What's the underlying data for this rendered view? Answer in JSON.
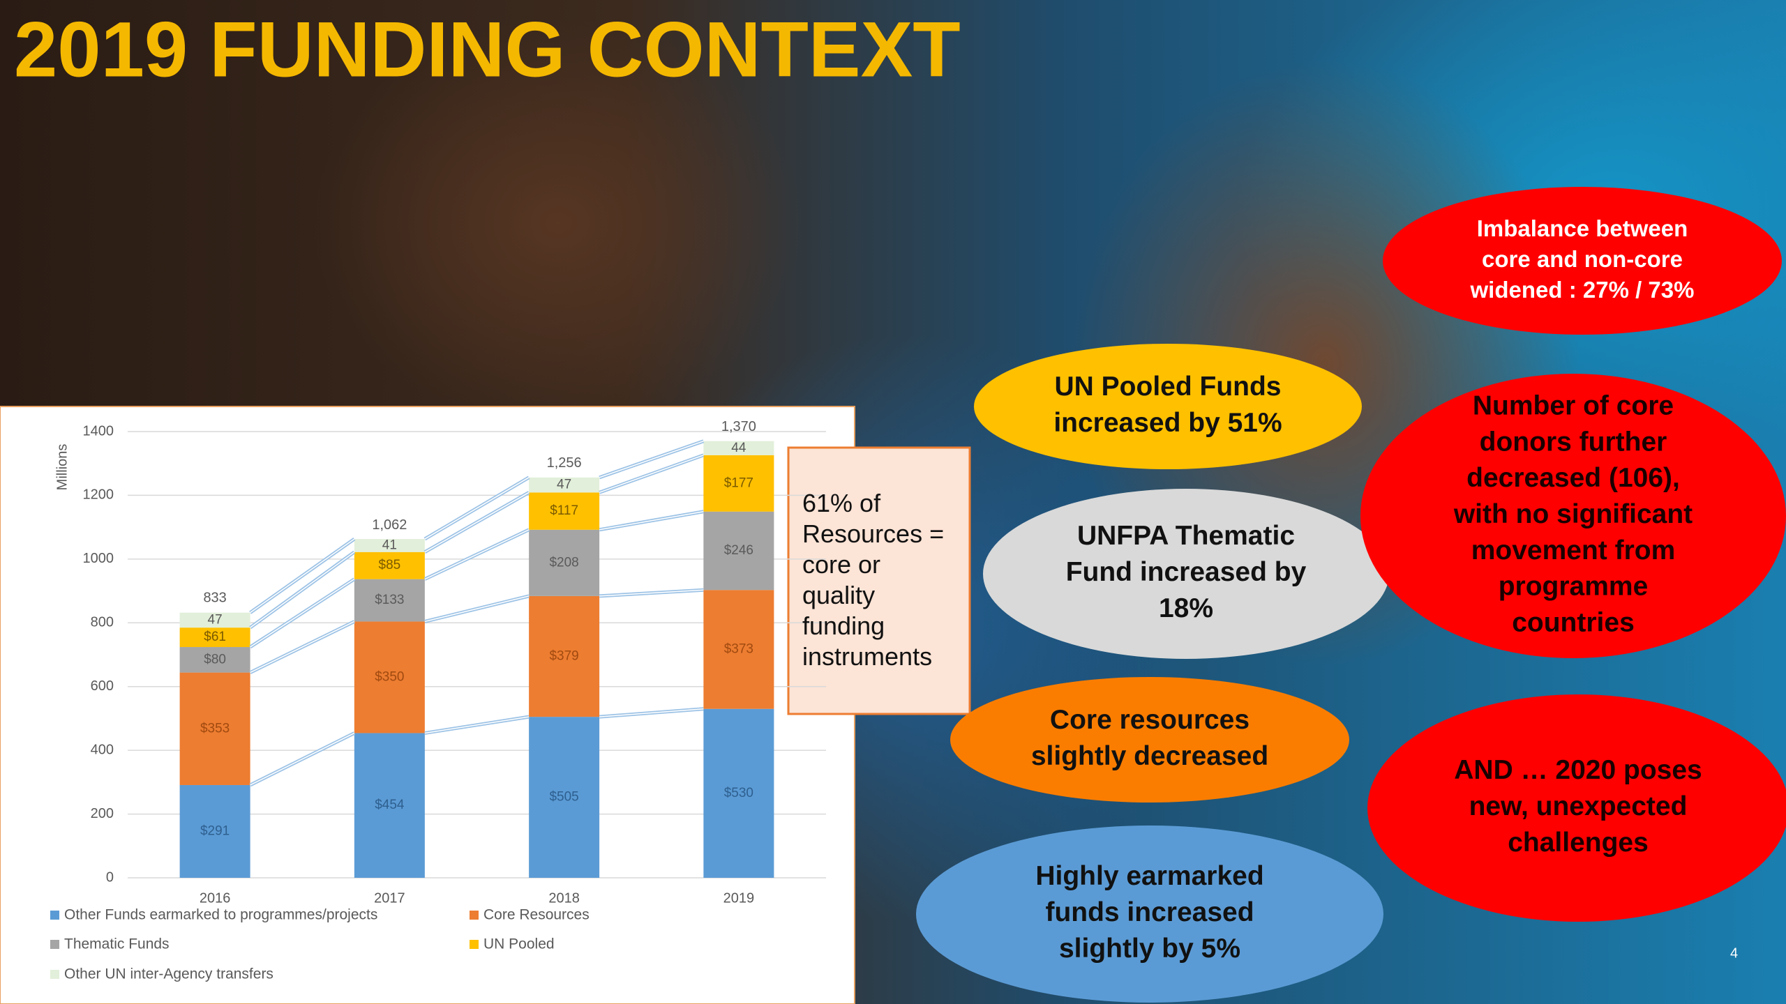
{
  "title": "2019 FUNDING  CONTEXT",
  "chart_data": {
    "type": "stacked_bar",
    "y_label": "Millions",
    "categories": [
      "2016",
      "2017",
      "2018",
      "2019"
    ],
    "series": [
      {
        "name": "Other Funds earmarked to programmes/projects",
        "color": "#5b9bd5",
        "values": [
          291,
          454,
          505,
          530
        ],
        "value_labels": [
          "$291",
          "$454",
          "$505",
          "$530"
        ]
      },
      {
        "name": "Core Resources",
        "color": "#ed7d31",
        "values": [
          353,
          350,
          379,
          373
        ],
        "value_labels": [
          "$353",
          "$350",
          "$379",
          "$373"
        ]
      },
      {
        "name": "Thematic Funds",
        "color": "#a5a5a5",
        "values": [
          80,
          133,
          208,
          246
        ],
        "value_labels": [
          "$80",
          "$133",
          "$208",
          "$246"
        ]
      },
      {
        "name": "UN Pooled",
        "color": "#ffc000",
        "values": [
          61,
          85,
          117,
          177
        ],
        "value_labels": [
          "$61",
          "$85",
          "$117",
          "$177"
        ]
      },
      {
        "name": "Other UN inter-Agency transfers",
        "color": "#e2efda",
        "values": [
          47,
          41,
          47,
          44
        ]
      }
    ],
    "totals": {
      "values": [
        833,
        1062,
        1256,
        1370
      ],
      "value_labels": [
        "833",
        "1,062",
        "1,256",
        "1,370"
      ]
    },
    "ylim": [
      0,
      1400
    ],
    "yticks": [
      0,
      200,
      400,
      600,
      800,
      1000,
      1200,
      1400
    ]
  },
  "note": [
    "61% of",
    "Resources =",
    "core or",
    "quality",
    "funding",
    "instruments"
  ],
  "callouts": [
    {
      "lines": [
        "Imbalance between",
        "core and non-core",
        "widened : 27% / 73%"
      ],
      "color": "#ff0000"
    },
    {
      "lines": [
        "UN Pooled Funds",
        "increased by 51%"
      ],
      "color": "#ffc000"
    },
    {
      "lines": [
        "UNFPA Thematic",
        "Fund increased by",
        "18%"
      ],
      "color": "#d9d9d9"
    },
    {
      "lines": [
        "Number of core",
        "donors further",
        "decreased (106),",
        "with no significant",
        "movement from",
        "programme",
        "countries"
      ],
      "color": "#ff0000"
    },
    {
      "lines": [
        "Core resources",
        "slightly decreased"
      ],
      "color": "#fa7d00"
    },
    {
      "lines": [
        "AND …  2020 poses",
        "new, unexpected",
        "challenges"
      ],
      "color": "#ff0000"
    },
    {
      "lines": [
        "Highly earmarked",
        "funds increased",
        "slightly by 5%"
      ],
      "color": "#5b9bd5"
    }
  ],
  "page_number": "4"
}
